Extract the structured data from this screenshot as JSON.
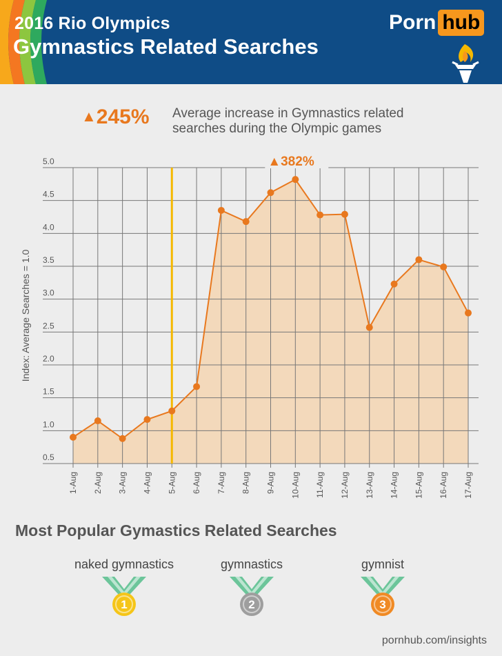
{
  "header": {
    "title": "2016 Rio Olympics",
    "subtitle": "Gymnastics Related Searches",
    "logo_part1": "Porn",
    "logo_part2": "hub"
  },
  "colors": {
    "header_bg": "#0f4c86",
    "accent_orange": "#e8781e",
    "marker_yellow": "#f5b800",
    "area_fill": "#f3d9bb",
    "gold": "#f5c518",
    "silver": "#9e9e9e",
    "bronze": "#f08a24",
    "ribbon_green": "#6cc59a"
  },
  "kpi": {
    "value": "245%",
    "description_line1": "Average increase in Gymnastics related",
    "description_line2": "searches during the Olympic games"
  },
  "chart_data": {
    "type": "area",
    "ylabel": "Index: Average Searches = 1.0",
    "xlabel": "",
    "ylim": [
      0.5,
      5.0
    ],
    "yticks": [
      "5.0",
      "4.5",
      "4.0",
      "3.5",
      "3.0",
      "2.5",
      "2.0",
      "1.5",
      "1.0",
      "0.5"
    ],
    "categories": [
      "1-Aug",
      "2-Aug",
      "3-Aug",
      "4-Aug",
      "5-Aug",
      "6-Aug",
      "7-Aug",
      "8-Aug",
      "9-Aug",
      "10-Aug",
      "11-Aug",
      "12-Aug",
      "13-Aug",
      "14-Aug",
      "15-Aug",
      "16-Aug",
      "17-Aug"
    ],
    "values": [
      0.9,
      1.15,
      0.88,
      1.17,
      1.3,
      1.67,
      4.35,
      4.18,
      4.62,
      4.82,
      4.28,
      4.29,
      2.57,
      3.23,
      3.6,
      3.49,
      2.79
    ],
    "highlight_category": "5-Aug",
    "peak_annotation": "382%",
    "grid": true
  },
  "popular": {
    "title": "Most Popular Gymastics Related Searches",
    "items": [
      {
        "term": "naked gymnastics",
        "rank": "1",
        "medal": "gold"
      },
      {
        "term": "gymnastics",
        "rank": "2",
        "medal": "silver"
      },
      {
        "term": "gymnist",
        "rank": "3",
        "medal": "bronze"
      }
    ]
  },
  "footer": {
    "source": "pornhub.com/insights"
  }
}
